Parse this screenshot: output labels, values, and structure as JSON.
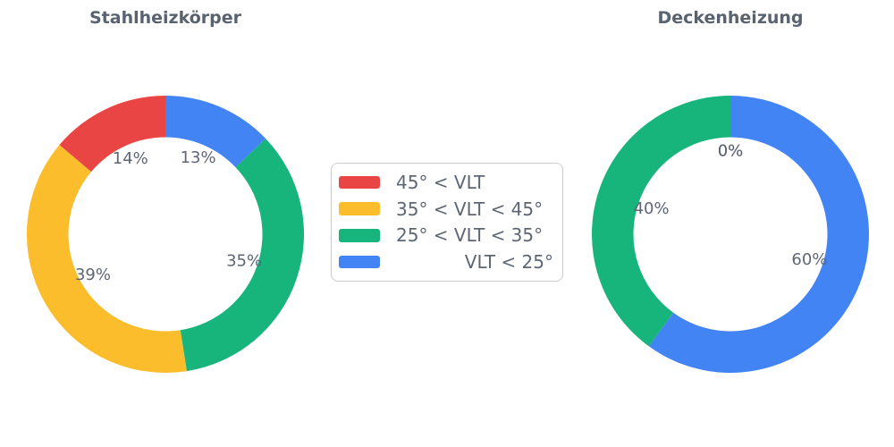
{
  "charts": [
    {
      "title": "Stahlheizkörper"
    },
    {
      "title": "Deckenheizung"
    }
  ],
  "legend": {
    "items": [
      {
        "label": "45° < VLT",
        "color": "#ea4545"
      },
      {
        "label": "35° < VLT < 45°",
        "color": "#fbbd2c"
      },
      {
        "label": "25° < VLT < 35°",
        "color": "#17b47c"
      },
      {
        "label": "VLT < 25°",
        "color": "#4284f3"
      }
    ]
  },
  "chart_data": [
    {
      "type": "pie",
      "subtype": "donut",
      "title": "Stahlheizkörper",
      "categories": [
        "45° < VLT",
        "35° < VLT < 45°",
        "25° < VLT < 35°",
        "VLT < 25°"
      ],
      "values": [
        14,
        39,
        35,
        13
      ],
      "labels": [
        "14%",
        "39%",
        "35%",
        "13%"
      ],
      "colors": [
        "#ea4545",
        "#fbbd2c",
        "#17b47c",
        "#4284f3"
      ],
      "start_angle": 90,
      "direction": "counterclockwise",
      "hole_ratio": 0.7,
      "label_distance": 0.6,
      "legend_position": "center-between-charts"
    },
    {
      "type": "pie",
      "subtype": "donut",
      "title": "Deckenheizung",
      "categories": [
        "45° < VLT",
        "35° < VLT < 45°",
        "25° < VLT < 35°",
        "VLT < 25°"
      ],
      "values": [
        0,
        0,
        40,
        60
      ],
      "labels": [
        "0%",
        "0%",
        "40%",
        "60%"
      ],
      "colors": [
        "#ea4545",
        "#fbbd2c",
        "#17b47c",
        "#4284f3"
      ],
      "start_angle": 90,
      "direction": "counterclockwise",
      "hole_ratio": 0.7,
      "label_distance": 0.6,
      "legend_position": "center-between-charts"
    }
  ],
  "style": {
    "background": "#ffffff",
    "title_color": "#59626f",
    "label_color": "#5d6774",
    "legend_border": "#cccccc"
  }
}
